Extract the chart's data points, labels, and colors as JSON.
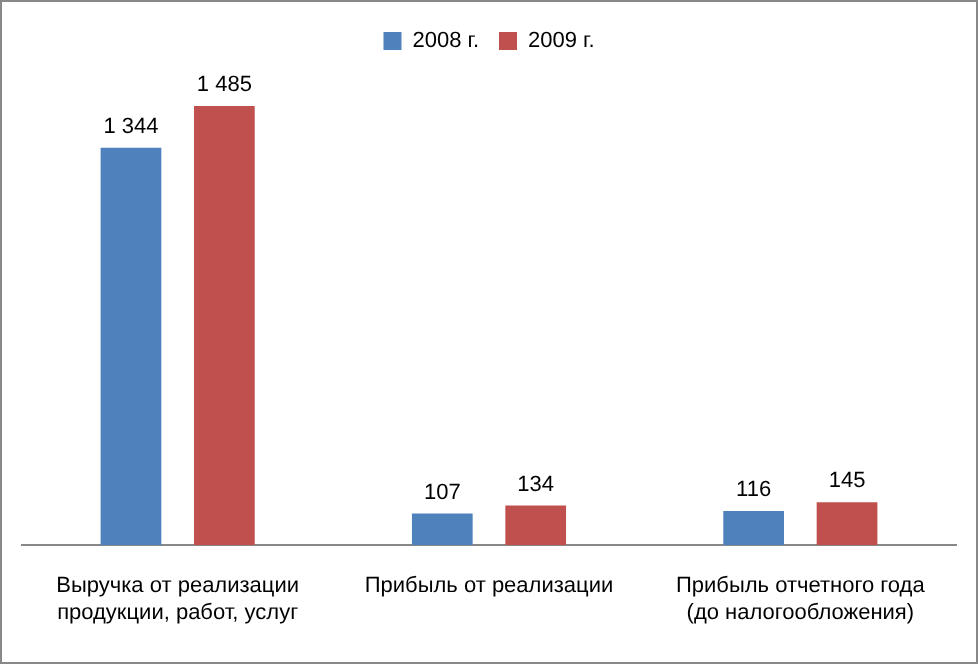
{
  "chart_data": {
    "type": "bar",
    "categories": [
      "Выручка от реализации продукции, работ, услуг",
      "Прибыль от реализации",
      "Прибыль отчетного года (до налогообложения)"
    ],
    "series": [
      {
        "name": "2008 г.",
        "color": "#4f81bd",
        "values": [
          1344,
          107,
          116
        ],
        "value_labels": [
          "1 344",
          "107",
          "116"
        ]
      },
      {
        "name": "2009 г.",
        "color": "#c0504d",
        "values": [
          1485,
          134,
          145
        ],
        "value_labels": [
          "1 485",
          "134",
          "145"
        ]
      }
    ],
    "legend": "top",
    "grid": false
  }
}
